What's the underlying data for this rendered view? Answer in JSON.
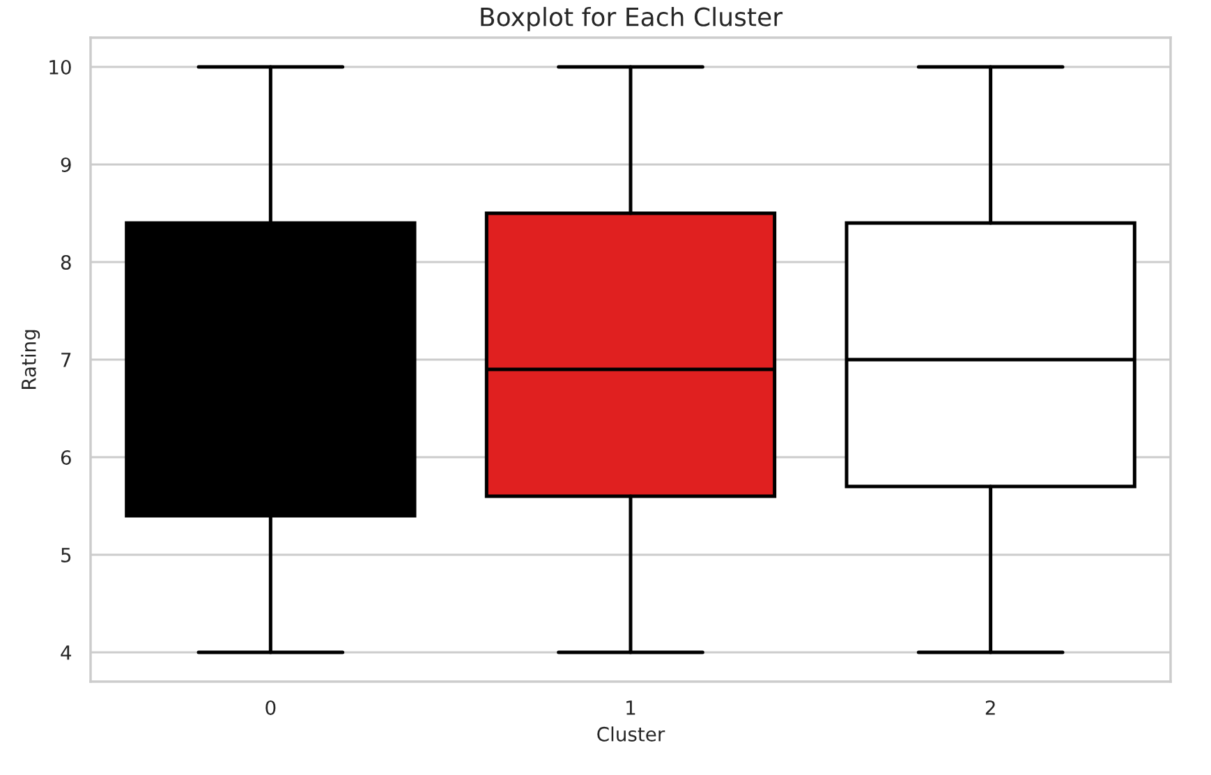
{
  "chart_data": {
    "type": "box",
    "title": "Boxplot for Each Cluster",
    "xlabel": "Cluster",
    "ylabel": "Rating",
    "categories": [
      "0",
      "1",
      "2"
    ],
    "colors": [
      "#000000",
      "#e02020",
      "#ffffff"
    ],
    "boxes": [
      {
        "low": 4,
        "q1": 5.4,
        "median": 7.0,
        "q3": 8.4,
        "high": 10
      },
      {
        "low": 4,
        "q1": 5.6,
        "median": 6.9,
        "q3": 8.5,
        "high": 10
      },
      {
        "low": 4,
        "q1": 5.7,
        "median": 7.0,
        "q3": 8.4,
        "high": 10
      }
    ],
    "ylim": [
      3.7,
      10.3
    ],
    "yticks": [
      4,
      5,
      6,
      7,
      8,
      9,
      10
    ],
    "grid": "y"
  }
}
